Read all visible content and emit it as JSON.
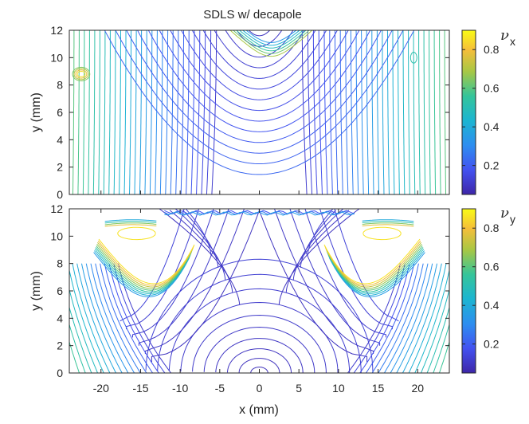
{
  "chart_data": [
    {
      "type": "contour",
      "title": "SDLS w/ decapole",
      "xlabel": "",
      "ylabel": "y (mm)",
      "xlim": [
        -24,
        24
      ],
      "ylim": [
        0,
        12
      ],
      "xticks": [],
      "yticks": [
        0,
        2,
        4,
        6,
        8,
        10,
        12
      ],
      "colorbar": {
        "label_main": "ν",
        "label_sub": "x",
        "range": [
          0.05,
          0.9
        ],
        "ticks": [
          0.2,
          0.4,
          0.6,
          0.8
        ],
        "colormap": "parula"
      },
      "contours": "vertical lines on sides, parabolic curves hanging from top center, high-value cap at top center"
    },
    {
      "type": "contour",
      "title": "",
      "xlabel": "x (mm)",
      "ylabel": "y (mm)",
      "xlim": [
        -24,
        24
      ],
      "ylim": [
        0,
        12
      ],
      "xticks": [
        -20,
        -15,
        -10,
        -5,
        0,
        5,
        10,
        15,
        20
      ],
      "yticks": [
        0,
        2,
        4,
        6,
        8,
        10,
        12
      ],
      "colorbar": {
        "label_main": "ν",
        "label_sub": "y",
        "range": [
          0.05,
          0.9
        ],
        "ticks": [
          0.2,
          0.4,
          0.6,
          0.8
        ],
        "colormap": "parula"
      },
      "contours": "hyperbolic saddle structure with high-value arcs near x=±13 to ±18, y=5 to 11, and nested arches around origin"
    }
  ]
}
